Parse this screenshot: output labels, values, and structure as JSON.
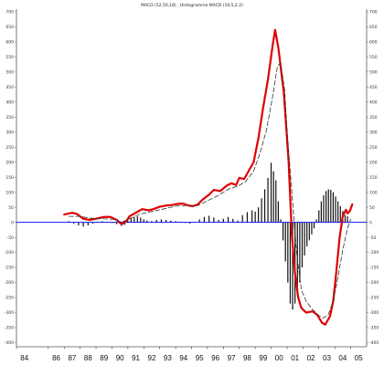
{
  "chart_data": {
    "type": "line",
    "title": "MACD (52,50,18) ,  Histogramme MACD (10,5,2,2)",
    "ylim": [
      -400,
      700
    ],
    "y_ticks": [
      700,
      650,
      600,
      550,
      500,
      450,
      400,
      350,
      300,
      250,
      200,
      150,
      100,
      50,
      0,
      -50,
      -100,
      -150,
      -200,
      -250,
      -300,
      -350,
      -400
    ],
    "x_ticks": [
      "84",
      "86",
      "87",
      "88",
      "89",
      "90",
      "91",
      "92",
      "93",
      "94",
      "95",
      "96",
      "97",
      "98",
      "99",
      "00",
      "01",
      "02",
      "03",
      "04",
      "05"
    ],
    "grid": false,
    "series": [
      {
        "kind": "line",
        "color": "#e00000",
        "points": [
          [
            87.0,
            26
          ],
          [
            87.5,
            32
          ],
          [
            87.8,
            28
          ],
          [
            88.2,
            12
          ],
          [
            88.6,
            8
          ],
          [
            89.0,
            12
          ],
          [
            89.5,
            18
          ],
          [
            89.9,
            18
          ],
          [
            90.3,
            8
          ],
          [
            90.6,
            -6
          ],
          [
            90.9,
            4
          ],
          [
            91.1,
            20
          ],
          [
            91.5,
            32
          ],
          [
            91.9,
            44
          ],
          [
            92.3,
            40
          ],
          [
            92.6,
            44
          ],
          [
            93.0,
            52
          ],
          [
            93.4,
            56
          ],
          [
            93.8,
            58
          ],
          [
            94.2,
            62
          ],
          [
            94.5,
            62
          ],
          [
            94.8,
            56
          ],
          [
            95.1,
            54
          ],
          [
            95.4,
            60
          ],
          [
            95.7,
            76
          ],
          [
            96.1,
            92
          ],
          [
            96.4,
            108
          ],
          [
            96.8,
            104
          ],
          [
            97.2,
            122
          ],
          [
            97.5,
            130
          ],
          [
            97.8,
            124
          ],
          [
            98.0,
            148
          ],
          [
            98.3,
            144
          ],
          [
            98.6,
            172
          ],
          [
            98.9,
            200
          ],
          [
            99.2,
            280
          ],
          [
            99.5,
            382
          ],
          [
            99.8,
            475
          ],
          [
            100.1,
            590
          ],
          [
            100.25,
            640
          ],
          [
            100.45,
            582
          ],
          [
            100.8,
            430
          ],
          [
            101.1,
            200
          ],
          [
            101.3,
            -40
          ],
          [
            101.5,
            -170
          ],
          [
            101.7,
            -250
          ],
          [
            101.9,
            -285
          ],
          [
            102.2,
            -300
          ],
          [
            102.6,
            -296
          ],
          [
            102.9,
            -308
          ],
          [
            103.2,
            -334
          ],
          [
            103.4,
            -340
          ],
          [
            103.7,
            -312
          ],
          [
            103.9,
            -262
          ],
          [
            104.1,
            -162
          ],
          [
            104.3,
            -52
          ],
          [
            104.5,
            20
          ],
          [
            104.7,
            42
          ],
          [
            104.8,
            30
          ],
          [
            104.95,
            38
          ],
          [
            105.1,
            60
          ]
        ]
      },
      {
        "kind": "line",
        "dashed": true,
        "color": "#333333",
        "points": [
          [
            87.3,
            20
          ],
          [
            88.0,
            20
          ],
          [
            88.6,
            14
          ],
          [
            89.4,
            12
          ],
          [
            90.2,
            10
          ],
          [
            90.6,
            0
          ],
          [
            91.1,
            12
          ],
          [
            91.8,
            28
          ],
          [
            92.5,
            36
          ],
          [
            93.2,
            44
          ],
          [
            94.0,
            54
          ],
          [
            94.7,
            56
          ],
          [
            95.4,
            56
          ],
          [
            96.0,
            72
          ],
          [
            96.7,
            90
          ],
          [
            97.3,
            110
          ],
          [
            97.9,
            120
          ],
          [
            98.4,
            136
          ],
          [
            98.9,
            170
          ],
          [
            99.3,
            230
          ],
          [
            99.7,
            305
          ],
          [
            100.1,
            420
          ],
          [
            100.4,
            520
          ],
          [
            100.6,
            530
          ],
          [
            100.85,
            440
          ],
          [
            101.0,
            310
          ],
          [
            101.3,
            100
          ],
          [
            101.6,
            -100
          ],
          [
            101.9,
            -225
          ],
          [
            102.2,
            -262
          ],
          [
            102.6,
            -290
          ],
          [
            103.0,
            -310
          ],
          [
            103.3,
            -318
          ],
          [
            103.6,
            -306
          ],
          [
            103.9,
            -262
          ],
          [
            104.2,
            -182
          ],
          [
            104.5,
            -92
          ],
          [
            104.8,
            -20
          ],
          [
            105.0,
            10
          ]
        ]
      },
      {
        "kind": "histogram",
        "color": "#111111",
        "points": [
          [
            87.3,
            4
          ],
          [
            87.6,
            -4
          ],
          [
            87.9,
            -10
          ],
          [
            88.2,
            -14
          ],
          [
            88.5,
            -10
          ],
          [
            88.8,
            -4
          ],
          [
            89.1,
            2
          ],
          [
            89.4,
            4
          ],
          [
            89.7,
            2
          ],
          [
            90.0,
            -2
          ],
          [
            90.3,
            -6
          ],
          [
            90.6,
            -12
          ],
          [
            90.8,
            -8
          ],
          [
            91.0,
            6
          ],
          [
            91.2,
            14
          ],
          [
            91.4,
            18
          ],
          [
            91.6,
            20
          ],
          [
            91.8,
            16
          ],
          [
            92.0,
            10
          ],
          [
            92.2,
            6
          ],
          [
            92.5,
            4
          ],
          [
            92.8,
            8
          ],
          [
            93.1,
            10
          ],
          [
            93.4,
            8
          ],
          [
            93.7,
            6
          ],
          [
            94.0,
            4
          ],
          [
            94.3,
            2
          ],
          [
            94.6,
            -2
          ],
          [
            94.9,
            -4
          ],
          [
            95.2,
            2
          ],
          [
            95.5,
            10
          ],
          [
            95.8,
            18
          ],
          [
            96.1,
            22
          ],
          [
            96.4,
            16
          ],
          [
            96.7,
            8
          ],
          [
            97.0,
            12
          ],
          [
            97.3,
            18
          ],
          [
            97.6,
            12
          ],
          [
            97.9,
            6
          ],
          [
            98.2,
            24
          ],
          [
            98.5,
            34
          ],
          [
            98.8,
            40
          ],
          [
            99.0,
            36
          ],
          [
            99.2,
            50
          ],
          [
            99.4,
            80
          ],
          [
            99.6,
            110
          ],
          [
            99.8,
            148
          ],
          [
            100.0,
            198
          ],
          [
            100.15,
            170
          ],
          [
            100.3,
            140
          ],
          [
            100.45,
            70
          ],
          [
            100.6,
            10
          ],
          [
            100.75,
            -60
          ],
          [
            100.9,
            -130
          ],
          [
            101.05,
            -200
          ],
          [
            101.2,
            -270
          ],
          [
            101.35,
            -290
          ],
          [
            101.5,
            -270
          ],
          [
            101.65,
            -240
          ],
          [
            101.8,
            -200
          ],
          [
            101.95,
            -150
          ],
          [
            102.1,
            -110
          ],
          [
            102.25,
            -80
          ],
          [
            102.4,
            -60
          ],
          [
            102.55,
            -40
          ],
          [
            102.7,
            -20
          ],
          [
            102.85,
            10
          ],
          [
            103.0,
            40
          ],
          [
            103.15,
            70
          ],
          [
            103.3,
            90
          ],
          [
            103.45,
            104
          ],
          [
            103.6,
            110
          ],
          [
            103.75,
            108
          ],
          [
            103.9,
            100
          ],
          [
            104.05,
            86
          ],
          [
            104.2,
            70
          ],
          [
            104.35,
            54
          ],
          [
            104.5,
            38
          ],
          [
            104.65,
            24
          ],
          [
            104.8,
            20
          ]
        ]
      },
      {
        "kind": "hline",
        "value": 0,
        "color": "#1010ee"
      }
    ]
  }
}
